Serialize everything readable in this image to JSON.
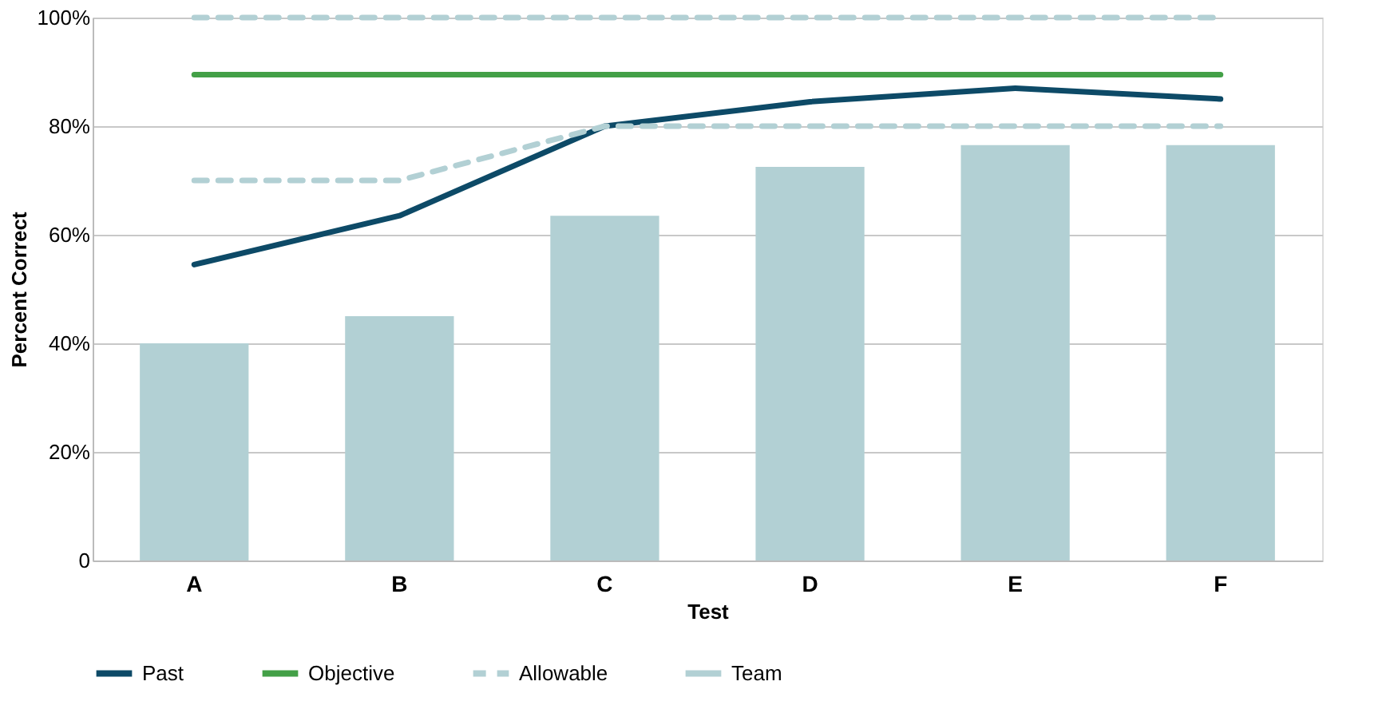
{
  "chart_data": {
    "type": "bar",
    "xlabel": "Test",
    "ylabel": "Percent Correct",
    "categories": [
      "A",
      "B",
      "C",
      "D",
      "E",
      "F"
    ],
    "series": [
      {
        "name": "Past",
        "type": "line",
        "color": "#0d4a67",
        "line_style": "solid",
        "values": [
          54.5,
          63.5,
          80,
          84.5,
          87,
          85
        ]
      },
      {
        "name": "Objective",
        "type": "line",
        "color": "#43a047",
        "line_style": "solid",
        "values": [
          89.5,
          89.5,
          89.5,
          89.5,
          89.5,
          89.5
        ]
      },
      {
        "name": "Allowable",
        "type": "line",
        "color": "#b2d0d4",
        "line_style": "dashed",
        "values": [
          70,
          70,
          80,
          80,
          80,
          80
        ]
      },
      {
        "type": "line",
        "color": "#b2d0d4",
        "line_style": "dashed",
        "values": [
          100,
          100,
          100,
          100,
          100,
          100
        ]
      },
      {
        "name": "Team",
        "color": "#b2d0d4",
        "values": [
          40,
          45,
          63.5,
          72.5,
          76.5,
          76.5
        ]
      }
    ],
    "ylim": [
      0,
      100
    ],
    "yticks": [
      0,
      {
        "value": 20,
        "label": "20%"
      },
      {
        "value": 40,
        "label": "40%"
      },
      {
        "value": 60,
        "label": "60%"
      },
      {
        "value": 80,
        "label": "80%"
      },
      {
        "value": 100,
        "label": "100%"
      }
    ],
    "grid": "y",
    "legend": "bottom",
    "marker": "none"
  }
}
